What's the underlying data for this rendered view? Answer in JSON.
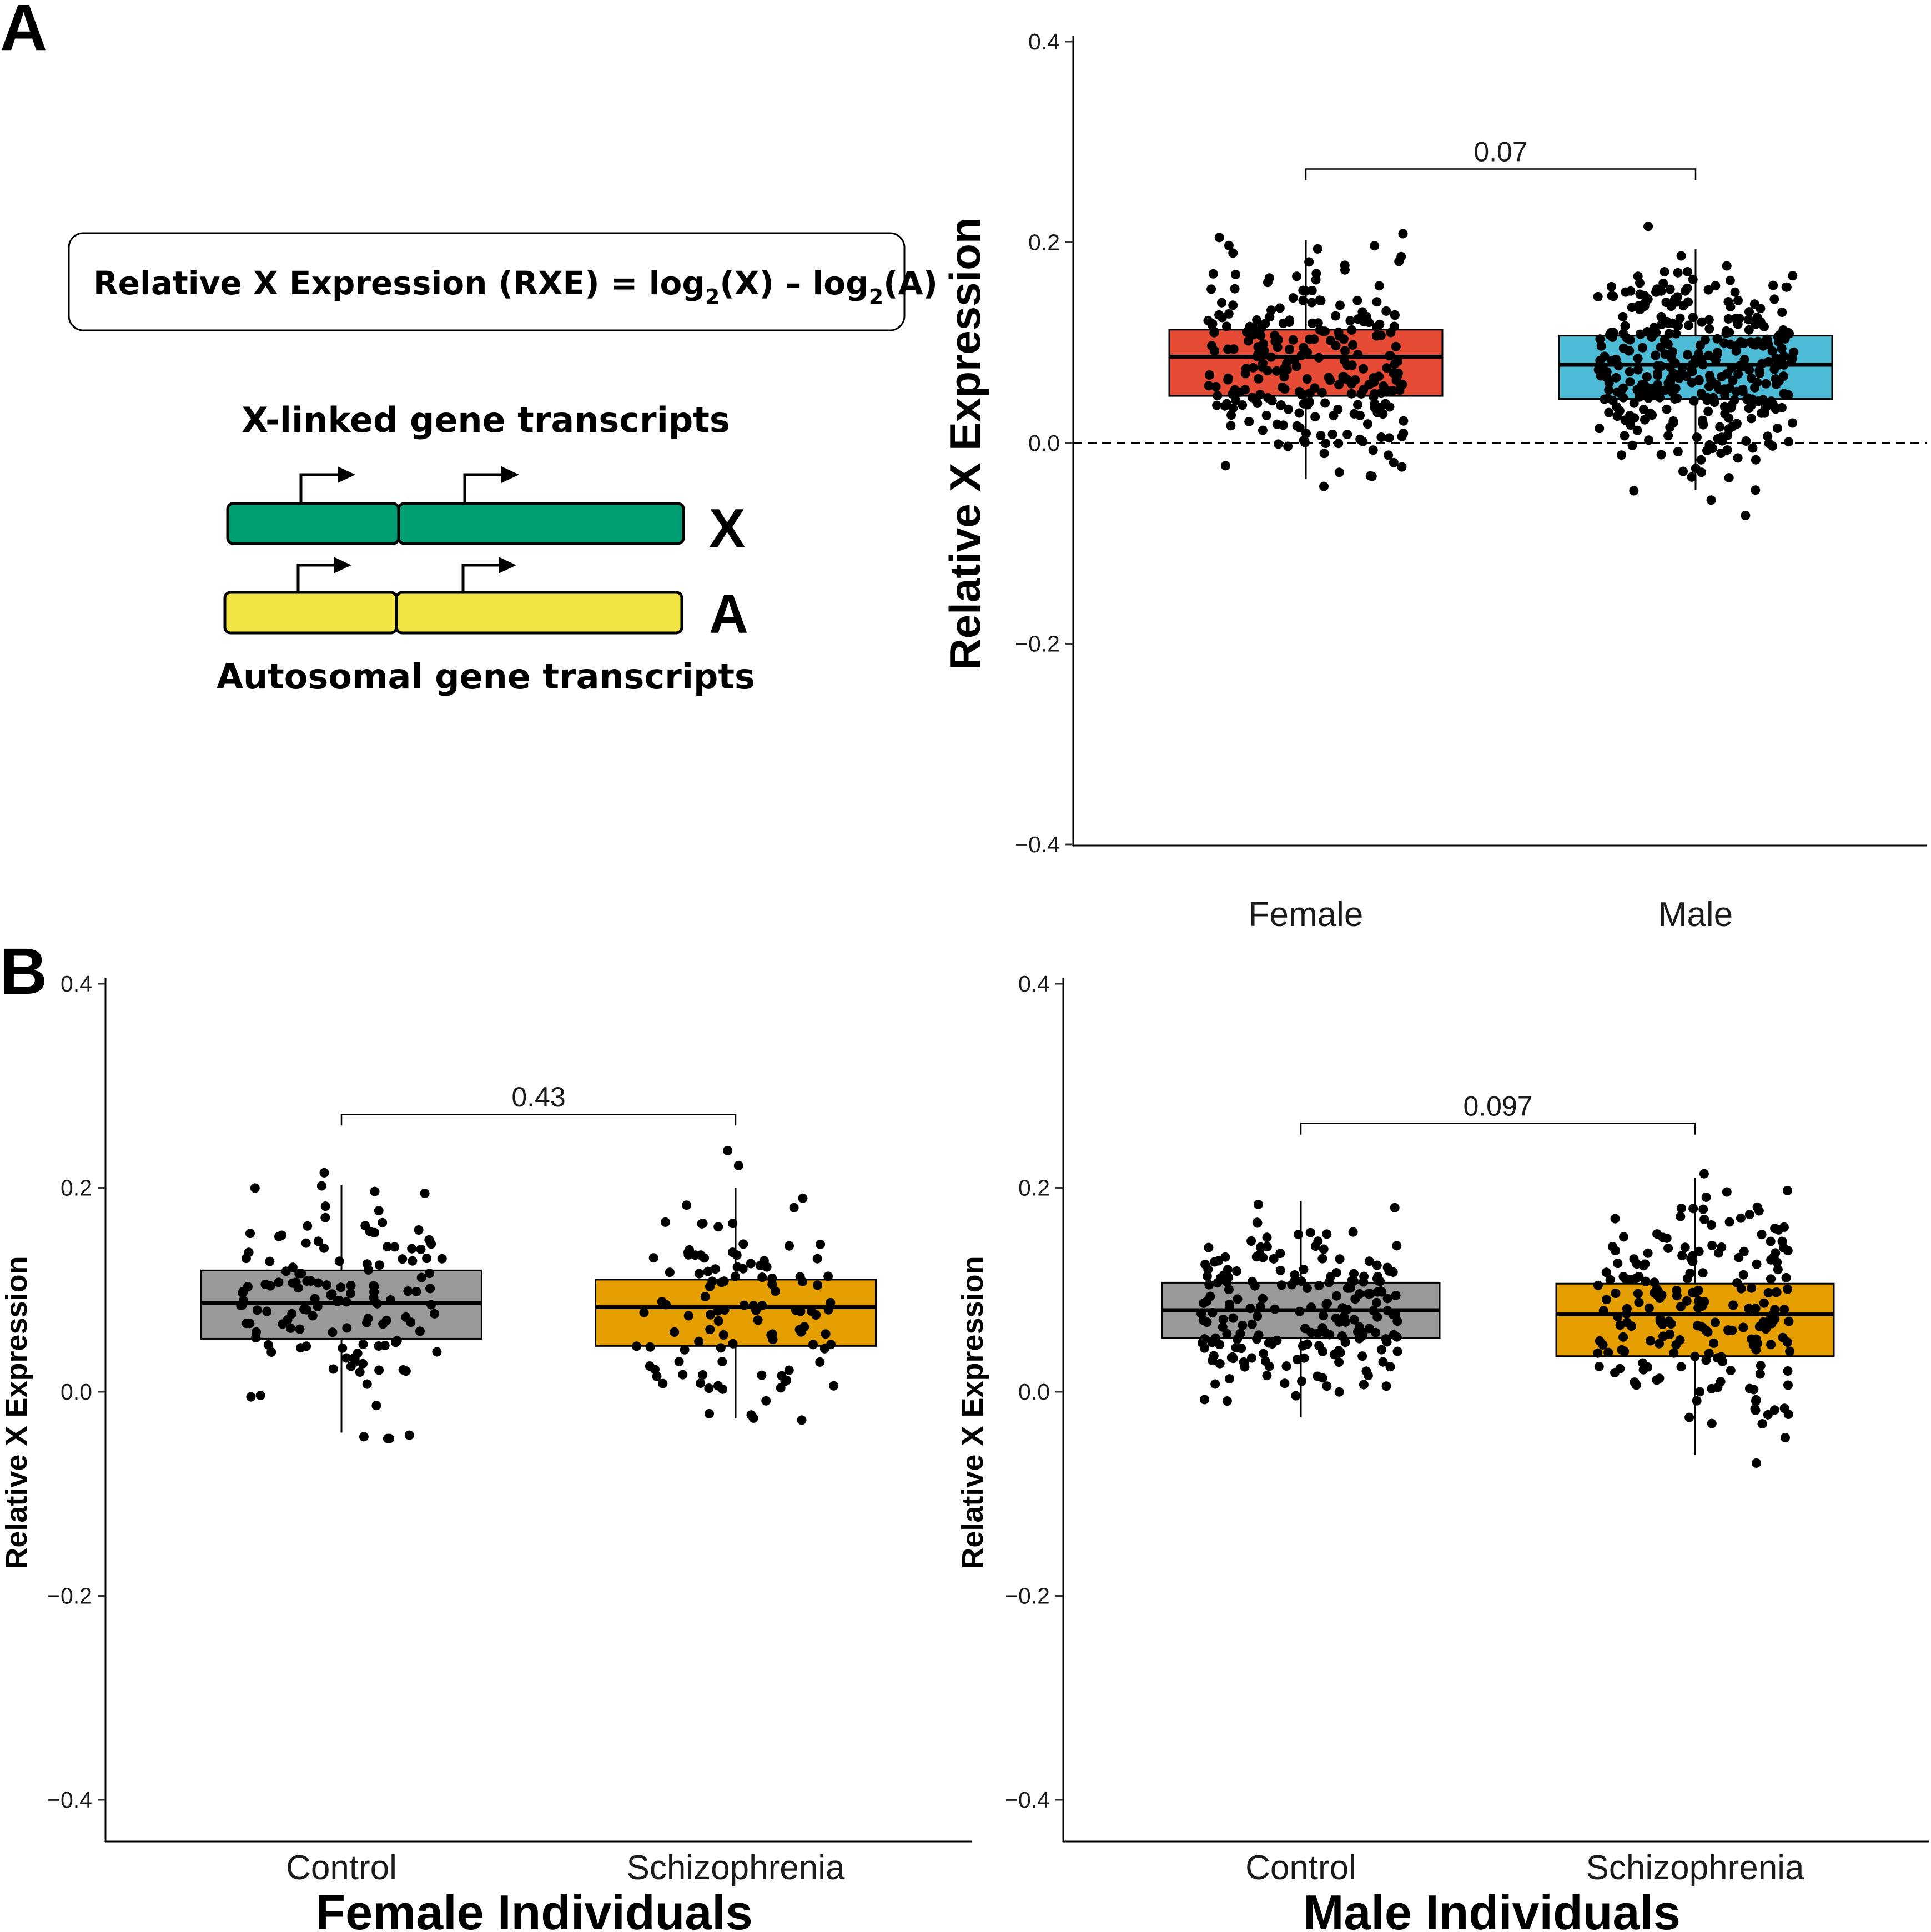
{
  "panels": {
    "a": "A",
    "b": "B"
  },
  "schematic": {
    "formula": {
      "prefix": "Relative X Expression (RXE) = log",
      "sub": "2",
      "mid": "(X) – log",
      "end": "(A)"
    },
    "x_label": "X-linked gene transcripts",
    "a_label": "Autosomal gene transcripts",
    "x_letter": "X",
    "a_letter": "A",
    "colors": {
      "x_bar": "#009e73",
      "a_bar": "#f0e442"
    }
  },
  "chart_data": [
    {
      "id": "sex",
      "type": "box",
      "title": "",
      "ylabel": "Relative X Expression",
      "xlabel": "",
      "ylim": [
        -0.4,
        0.4
      ],
      "yticks": [
        "−0.4",
        "−0.2",
        "0.0",
        "0.2",
        "0.4"
      ],
      "reference_line": 0.0,
      "categories": [
        "Female",
        "Male"
      ],
      "boxes": [
        {
          "name": "Female",
          "color": "#e64b35",
          "q1": 0.047,
          "median": 0.086,
          "q3": 0.113,
          "whisker_low": -0.036,
          "whisker_high": 0.202,
          "n_points": 260
        },
        {
          "name": "Male",
          "color": "#4dbbd5",
          "q1": 0.044,
          "median": 0.078,
          "q3": 0.107,
          "whisker_low": -0.047,
          "whisker_high": 0.193,
          "n_points": 360
        }
      ],
      "comparison": {
        "between": [
          "Female",
          "Male"
        ],
        "label": "0.07",
        "y": 0.273
      }
    },
    {
      "id": "female",
      "type": "box",
      "title": "",
      "ylabel": "Relative X Expression",
      "xlabel": "Female Individuals",
      "ylim": [
        -0.4,
        0.4
      ],
      "yticks": [
        "−0.4",
        "−0.2",
        "0.0",
        "0.2",
        "0.4"
      ],
      "categories": [
        "Control",
        "Schizophrenia"
      ],
      "boxes": [
        {
          "name": "Control",
          "color": "#999999",
          "q1": 0.052,
          "median": 0.087,
          "q3": 0.119,
          "whisker_low": -0.04,
          "whisker_high": 0.203,
          "n_points": 135
        },
        {
          "name": "Schizophrenia",
          "color": "#e69f00",
          "q1": 0.045,
          "median": 0.083,
          "q3": 0.11,
          "whisker_low": -0.026,
          "whisker_high": 0.2,
          "n_points": 110
        }
      ],
      "comparison": {
        "between": [
          "Control",
          "Schizophrenia"
        ],
        "label": "0.43",
        "y": 0.272
      }
    },
    {
      "id": "male",
      "type": "box",
      "title": "",
      "ylabel": "Relative X Expression",
      "xlabel": "Male Individuals",
      "ylim": [
        -0.4,
        0.4
      ],
      "yticks": [
        "−0.4",
        "−0.2",
        "0.0",
        "0.2",
        "0.4"
      ],
      "categories": [
        "Control",
        "Schizophrenia"
      ],
      "boxes": [
        {
          "name": "Control",
          "color": "#999999",
          "q1": 0.053,
          "median": 0.08,
          "q3": 0.107,
          "whisker_low": -0.025,
          "whisker_high": 0.187,
          "n_points": 200
        },
        {
          "name": "Schizophrenia",
          "color": "#e69f00",
          "q1": 0.035,
          "median": 0.076,
          "q3": 0.106,
          "whisker_low": -0.062,
          "whisker_high": 0.21,
          "n_points": 200
        }
      ],
      "comparison": {
        "between": [
          "Control",
          "Schizophrenia"
        ],
        "label": "0.097",
        "y": 0.263
      }
    }
  ]
}
